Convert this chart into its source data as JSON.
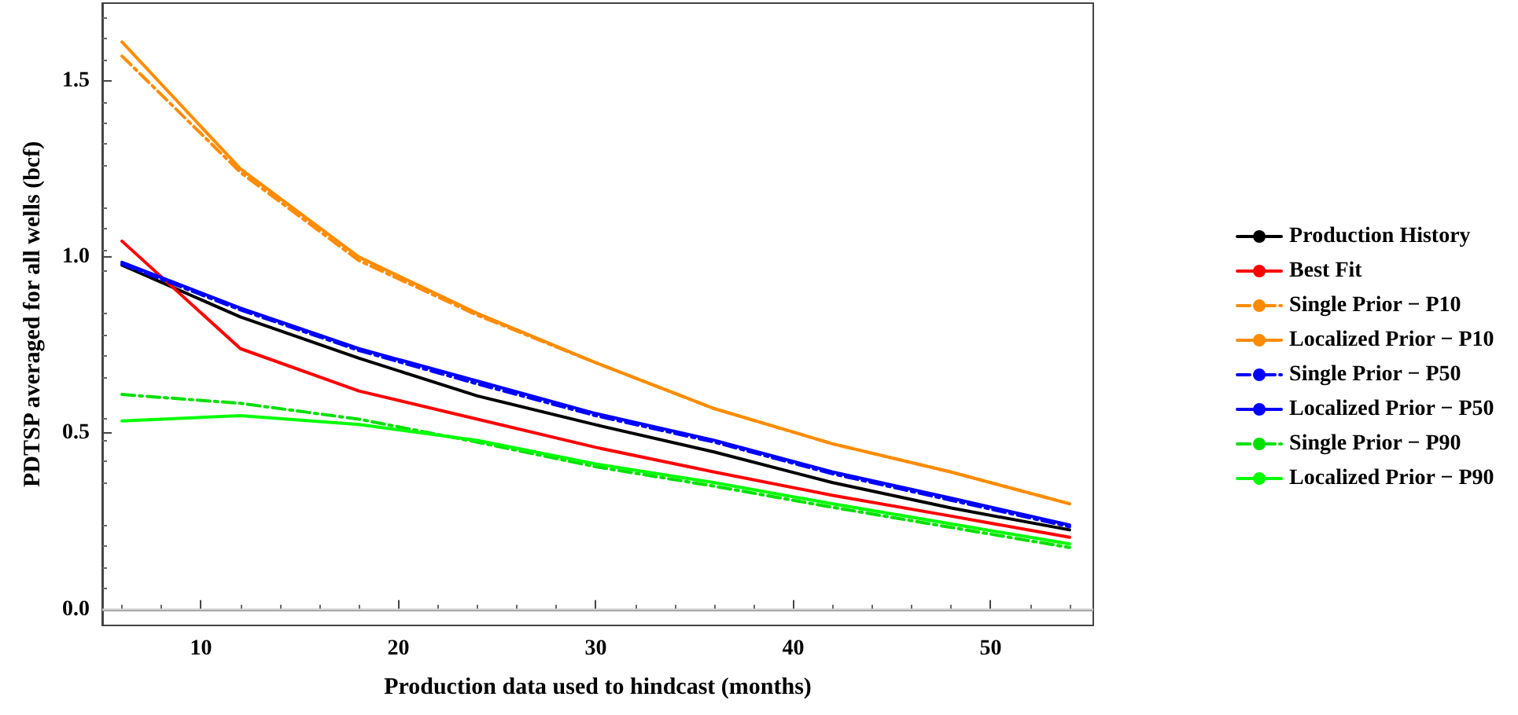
{
  "chart_data": {
    "type": "line",
    "xlabel": "Production data used to hindcast (months)",
    "ylabel": "PDTSP averaged for all wells (bcf)",
    "x": [
      6,
      12,
      18,
      24,
      30,
      36,
      42,
      48,
      54
    ],
    "xlim": [
      5,
      55.2
    ],
    "xticks": [
      10,
      20,
      30,
      40,
      50
    ],
    "ylim": [
      -0.045,
      1.72
    ],
    "yticks": [
      {
        "value": 0,
        "label": "0.0"
      },
      {
        "value": 0.5,
        "label": "0.5"
      },
      {
        "value": 1,
        "label": "1.0"
      },
      {
        "value": 1.5,
        "label": "1.5"
      }
    ],
    "grid": false,
    "legend": "right",
    "marker": "none",
    "ref_lines": [
      {
        "axis": "y",
        "value": 0,
        "color": "#cccccc"
      }
    ],
    "series": [
      {
        "name": "Production History",
        "color": "#000000",
        "line_style": "solid",
        "values": [
          0.977,
          0.83,
          0.713,
          0.606,
          0.524,
          0.447,
          0.36,
          0.288,
          0.226
        ]
      },
      {
        "name": "Best Fit",
        "color": "#ff0000",
        "line_style": "solid",
        "values": [
          1.045,
          0.74,
          0.62,
          0.54,
          0.46,
          0.39,
          0.324,
          0.265,
          0.205
        ]
      },
      {
        "name": "Single Prior − P10",
        "color": "#ff8c00",
        "line_style": "dashed",
        "values": [
          1.57,
          1.24,
          0.99,
          0.835,
          0.7,
          0.57,
          0.47,
          0.39,
          0.3
        ]
      },
      {
        "name": "Localized Prior − P10",
        "color": "#ff8c00",
        "line_style": "solid",
        "values": [
          1.61,
          1.25,
          1.0,
          0.84,
          0.7,
          0.57,
          0.47,
          0.39,
          0.3
        ]
      },
      {
        "name": "Single Prior − P50",
        "color": "#0000ff",
        "line_style": "dashed",
        "values": [
          0.98,
          0.85,
          0.735,
          0.64,
          0.55,
          0.475,
          0.385,
          0.31,
          0.235
        ]
      },
      {
        "name": "Localized Prior − P50",
        "color": "#0000ff",
        "line_style": "solid",
        "values": [
          0.985,
          0.855,
          0.74,
          0.648,
          0.556,
          0.48,
          0.39,
          0.316,
          0.24
        ]
      },
      {
        "name": "Single Prior − P90",
        "color": "#00e000",
        "line_style": "dashed",
        "values": [
          0.61,
          0.585,
          0.54,
          0.475,
          0.405,
          0.35,
          0.29,
          0.233,
          0.176
        ]
      },
      {
        "name": "Localized Prior − P90",
        "color": "#00ff00",
        "line_style": "solid",
        "values": [
          0.535,
          0.55,
          0.525,
          0.48,
          0.413,
          0.36,
          0.3,
          0.243,
          0.186
        ]
      }
    ]
  }
}
